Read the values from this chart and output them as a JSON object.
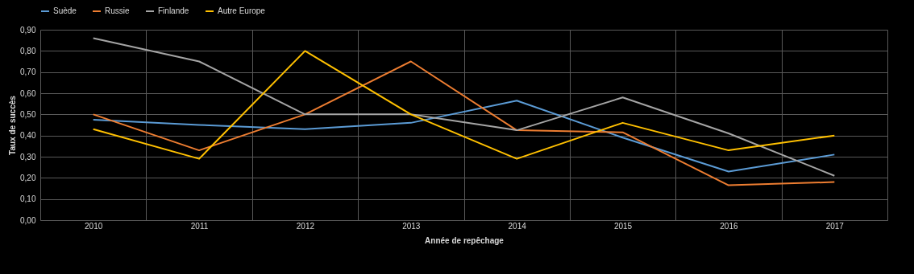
{
  "chart_data": {
    "type": "line",
    "xlabel": "Année de repêchage",
    "ylabel": "Taux de succès",
    "categories": [
      "2010",
      "2011",
      "2012",
      "2013",
      "2014",
      "2015",
      "2016",
      "2017"
    ],
    "series": [
      {
        "name": "Suède",
        "color": "#5b9bd5",
        "values": [
          0.475,
          0.45,
          0.43,
          0.46,
          0.565,
          0.39,
          0.23,
          0.31
        ]
      },
      {
        "name": "Russie",
        "color": "#ed7d31",
        "values": [
          0.5,
          0.33,
          0.5,
          0.75,
          0.425,
          0.415,
          0.165,
          0.18
        ]
      },
      {
        "name": "Finlande",
        "color": "#a5a5a5",
        "values": [
          0.86,
          0.75,
          0.5,
          0.5,
          0.425,
          0.58,
          0.41,
          0.21
        ]
      },
      {
        "name": "Autre Europe",
        "color": "#ffc000",
        "values": [
          0.43,
          0.29,
          0.8,
          0.5,
          0.29,
          0.46,
          0.33,
          0.4
        ]
      }
    ],
    "ylim": [
      0,
      0.9
    ],
    "yticks": [
      {
        "value": 0,
        "label": "0,00"
      },
      {
        "value": 0.1,
        "label": "0,10"
      },
      {
        "value": 0.2,
        "label": "0,20"
      },
      {
        "value": 0.3,
        "label": "0,30"
      },
      {
        "value": 0.4,
        "label": "0,40"
      },
      {
        "value": 0.5,
        "label": "0,50"
      },
      {
        "value": 0.6,
        "label": "0,60"
      },
      {
        "value": 0.7,
        "label": "0,70"
      },
      {
        "value": 0.8,
        "label": "0,80"
      },
      {
        "value": 0.9,
        "label": "0,90"
      }
    ],
    "grid": true,
    "legend": "top",
    "marker": "none",
    "line_style": "solid"
  }
}
